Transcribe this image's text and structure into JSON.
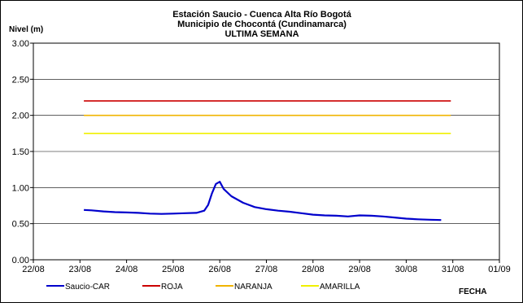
{
  "chart_data": {
    "type": "line",
    "title": [
      "Estación Saucio - Cuenca Alta Río Bogotá",
      "Municipio de Chocontá (Cundinamarca)",
      "ULTIMA SEMANA"
    ],
    "ylabel": "Nivel (m)",
    "xlabel": "FECHA",
    "x_ticks": [
      "22/08",
      "23/08",
      "24/08",
      "25/08",
      "26/08",
      "27/08",
      "28/08",
      "29/08",
      "30/08",
      "31/08",
      "01/09"
    ],
    "y_ticks": [
      "0.00",
      "0.50",
      "1.00",
      "1.50",
      "2.00",
      "2.50",
      "3.00"
    ],
    "ylim": [
      0,
      3
    ],
    "xlim": [
      "22/08",
      "01/09"
    ],
    "grid": "horizontal",
    "legend_position": "bottom",
    "series": [
      {
        "name": "Saucio-CAR",
        "color": "#0000cc",
        "points": [
          [
            "23/08 02:00",
            0.69
          ],
          [
            "23/08 06:00",
            0.685
          ],
          [
            "23/08 12:00",
            0.67
          ],
          [
            "23/08 18:00",
            0.66
          ],
          [
            "24/08 00:00",
            0.655
          ],
          [
            "24/08 06:00",
            0.65
          ],
          [
            "24/08 12:00",
            0.64
          ],
          [
            "24/08 18:00",
            0.635
          ],
          [
            "25/08 00:00",
            0.64
          ],
          [
            "25/08 06:00",
            0.645
          ],
          [
            "25/08 12:00",
            0.65
          ],
          [
            "25/08 16:00",
            0.68
          ],
          [
            "25/08 18:00",
            0.76
          ],
          [
            "25/08 20:00",
            0.92
          ],
          [
            "25/08 22:00",
            1.05
          ],
          [
            "26/08 00:00",
            1.08
          ],
          [
            "26/08 02:00",
            0.98
          ],
          [
            "26/08 06:00",
            0.88
          ],
          [
            "26/08 12:00",
            0.79
          ],
          [
            "26/08 18:00",
            0.73
          ],
          [
            "27/08 00:00",
            0.7
          ],
          [
            "27/08 06:00",
            0.68
          ],
          [
            "27/08 12:00",
            0.665
          ],
          [
            "27/08 18:00",
            0.645
          ],
          [
            "28/08 00:00",
            0.625
          ],
          [
            "28/08 06:00",
            0.615
          ],
          [
            "28/08 12:00",
            0.61
          ],
          [
            "28/08 18:00",
            0.6
          ],
          [
            "29/08 00:00",
            0.615
          ],
          [
            "29/08 06:00",
            0.61
          ],
          [
            "29/08 12:00",
            0.6
          ],
          [
            "29/08 18:00",
            0.585
          ],
          [
            "30/08 00:00",
            0.57
          ],
          [
            "30/08 06:00",
            0.56
          ],
          [
            "30/08 12:00",
            0.555
          ],
          [
            "30/08 18:00",
            0.55
          ]
        ]
      },
      {
        "name": "ROJA",
        "color": "#cc0000",
        "points": [
          [
            "23/08 02:00",
            2.2
          ],
          [
            "30/08 23:00",
            2.2
          ]
        ]
      },
      {
        "name": "NARANJA",
        "color": "#f0b400",
        "points": [
          [
            "23/08 02:00",
            2.0
          ],
          [
            "30/08 23:00",
            2.0
          ]
        ]
      },
      {
        "name": "AMARILLA",
        "color": "#f0f000",
        "points": [
          [
            "23/08 02:00",
            1.75
          ],
          [
            "30/08 23:00",
            1.75
          ]
        ]
      }
    ]
  }
}
